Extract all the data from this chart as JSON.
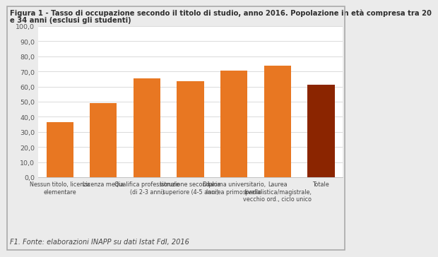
{
  "title_line1": "Figura 1 - Tasso di occupazione secondo il titolo di studio, anno 2016. Popolazione in età compresa tra 20",
  "title_line2": "e 34 anni (esclusi gli studenti)",
  "categories": [
    "Nessun titolo, licenza\nelementare",
    "Licenza media",
    "Qualifica professionale\n(di 2-3 anni)",
    "Istruzione secondaria\nsuperiore (4-5 anni)",
    "Diploma universitario,\nlaurea primo livello",
    "Laurea\nspecialistica/magistrale,\nvecchio ord., ciclo unico",
    "Totale"
  ],
  "values": [
    36.5,
    49.0,
    65.2,
    63.7,
    70.7,
    73.7,
    61.2
  ],
  "bar_colors": [
    "#E87722",
    "#E87722",
    "#E87722",
    "#E87722",
    "#E87722",
    "#E87722",
    "#8B2500"
  ],
  "ylim": [
    0,
    100
  ],
  "yticks": [
    0,
    10,
    20,
    30,
    40,
    50,
    60,
    70,
    80,
    90,
    100
  ],
  "ytick_labels": [
    "0,0",
    "10,0",
    "20,0",
    "30,0",
    "40,0",
    "50,0",
    "60,0",
    "70,0",
    "80,0",
    "90,0",
    "100,0"
  ],
  "footer": "F1. Fonte: elaborazioni INAPP su dati Istat FdI, 2016",
  "background_color": "#EBEBEB",
  "plot_background": "#FFFFFF",
  "title_fontsize": 7.2,
  "footer_fontsize": 7.0,
  "ytick_fontsize": 6.8,
  "xlabel_fontsize": 5.8
}
